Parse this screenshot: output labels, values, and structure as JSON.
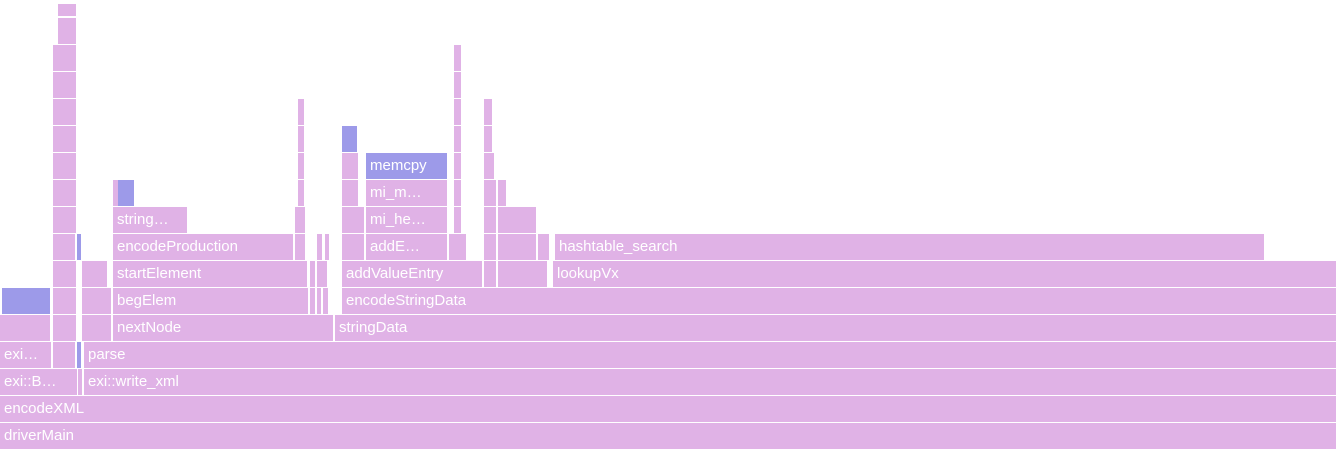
{
  "colors": {
    "pink": "#e0b2e6",
    "blue": "#9d9ae9",
    "text": "#ffffff"
  },
  "frames": [
    {
      "label": "driverMain",
      "color": "pink"
    },
    {
      "label": "encodeXML",
      "color": "pink"
    },
    {
      "label": "exi::B…",
      "color": "pink"
    },
    {
      "label": "",
      "color": "pink"
    },
    {
      "label": "exi::write_xml",
      "color": "pink"
    },
    {
      "label": "exi…",
      "color": "pink"
    },
    {
      "label": "",
      "color": "pink"
    },
    {
      "label": "",
      "color": "blue"
    },
    {
      "label": "parse",
      "color": "pink"
    },
    {
      "label": "",
      "color": "pink"
    },
    {
      "label": "",
      "color": "pink"
    },
    {
      "label": "",
      "color": "pink"
    },
    {
      "label": "nextNode",
      "color": "pink"
    },
    {
      "label": "stringData",
      "color": "pink"
    },
    {
      "label": "",
      "color": "blue"
    },
    {
      "label": "",
      "color": "pink"
    },
    {
      "label": "",
      "color": "pink"
    },
    {
      "label": "begElem",
      "color": "pink"
    },
    {
      "label": "",
      "color": "pink"
    },
    {
      "label": "",
      "color": "pink"
    },
    {
      "label": "",
      "color": "pink"
    },
    {
      "label": "encodeStringData",
      "color": "pink"
    },
    {
      "label": "",
      "color": "pink"
    },
    {
      "label": "",
      "color": "pink"
    },
    {
      "label": "startElement",
      "color": "pink"
    },
    {
      "label": "",
      "color": "pink"
    },
    {
      "label": "",
      "color": "pink"
    },
    {
      "label": "addValueEntry",
      "color": "pink"
    },
    {
      "label": "",
      "color": "pink"
    },
    {
      "label": "",
      "color": "pink"
    },
    {
      "label": "lookupVx",
      "color": "pink"
    },
    {
      "label": "",
      "color": "pink"
    },
    {
      "label": "",
      "color": "blue"
    },
    {
      "label": "encodeProduction",
      "color": "pink"
    },
    {
      "label": "",
      "color": "pink"
    },
    {
      "label": "",
      "color": "pink"
    },
    {
      "label": "",
      "color": "pink"
    },
    {
      "label": "",
      "color": "pink"
    },
    {
      "label": "addE…",
      "color": "pink"
    },
    {
      "label": "",
      "color": "pink"
    },
    {
      "label": "",
      "color": "pink"
    },
    {
      "label": "",
      "color": "pink"
    },
    {
      "label": "",
      "color": "pink"
    },
    {
      "label": "hashtable_search",
      "color": "pink"
    },
    {
      "label": "",
      "color": "pink"
    },
    {
      "label": "string…",
      "color": "pink"
    },
    {
      "label": "",
      "color": "pink"
    },
    {
      "label": "",
      "color": "pink"
    },
    {
      "label": "mi_he…",
      "color": "pink"
    },
    {
      "label": "",
      "color": "pink"
    },
    {
      "label": "",
      "color": "pink"
    },
    {
      "label": "",
      "color": "pink"
    },
    {
      "label": "",
      "color": "pink"
    },
    {
      "label": "",
      "color": "pink"
    },
    {
      "label": "",
      "color": "blue"
    },
    {
      "label": "",
      "color": "pink"
    },
    {
      "label": "",
      "color": "pink"
    },
    {
      "label": "mi_m…",
      "color": "pink"
    },
    {
      "label": "",
      "color": "pink"
    },
    {
      "label": "",
      "color": "pink"
    },
    {
      "label": "",
      "color": "pink"
    },
    {
      "label": "",
      "color": "pink"
    },
    {
      "label": "",
      "color": "pink"
    },
    {
      "label": "",
      "color": "pink"
    },
    {
      "label": "memcpy",
      "color": "blue"
    },
    {
      "label": "",
      "color": "pink"
    },
    {
      "label": "",
      "color": "pink"
    },
    {
      "label": "",
      "color": "pink"
    },
    {
      "label": "",
      "color": "blue"
    },
    {
      "label": "",
      "color": "pink"
    },
    {
      "label": "",
      "color": "pink"
    },
    {
      "label": "",
      "color": "pink"
    },
    {
      "label": "",
      "color": "pink"
    },
    {
      "label": "",
      "color": "pink"
    },
    {
      "label": "",
      "color": "pink"
    },
    {
      "label": "",
      "color": "pink"
    },
    {
      "label": "",
      "color": "pink"
    },
    {
      "label": "",
      "color": "pink"
    }
  ]
}
